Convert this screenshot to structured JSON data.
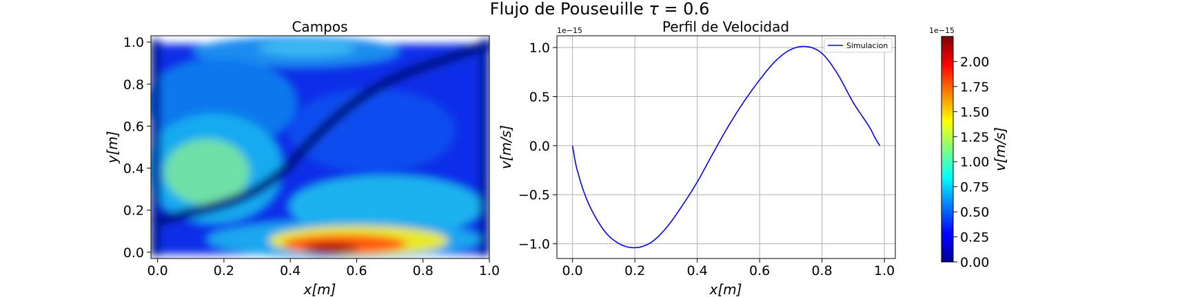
{
  "figure": {
    "title": "Flujo de Pouseuille τ = 0.6",
    "title_main": "Flujo de Pouseuille ",
    "title_tau": "τ",
    "title_rest": " = 0.6"
  },
  "chart_data": [
    {
      "type": "heatmap",
      "title": "Campos",
      "xlabel": "x[m]",
      "ylabel": "y[m]",
      "xlim": [
        -0.02,
        1.0
      ],
      "ylim": [
        -0.03,
        1.03
      ],
      "xticks": [
        "0.0",
        "0.2",
        "0.4",
        "0.6",
        "0.8",
        "1.0"
      ],
      "yticks": [
        "0.0",
        "0.2",
        "0.4",
        "0.6",
        "0.8",
        "1.0"
      ],
      "colormap": "jet",
      "value_range": [
        0,
        2.25e-15
      ],
      "grid": false,
      "description_of_field": "velocity magnitude; max ~2.2e-15 near (0.5, 0.0), secondary ~1.1e-15 near (0.25, 0.35), low band along a diagonal S-shaped streamline from (0,0.1) to (1,1)"
    },
    {
      "type": "line",
      "title": "Perfil de Velocidad",
      "xlabel": "x[m]",
      "ylabel": "v[m/s]",
      "offset_text": "1e−15",
      "xlim": [
        -0.05,
        1.035
      ],
      "ylim": [
        -1.15,
        1.12
      ],
      "xticks": [
        "0.0",
        "0.2",
        "0.4",
        "0.6",
        "0.8",
        "1.0"
      ],
      "yticks": [
        "−1.0",
        "−0.5",
        "0.0",
        "0.5",
        "1.0"
      ],
      "grid": true,
      "legend_position": "upper right",
      "series": [
        {
          "name": "Simulacion",
          "color": "#0000ff",
          "x": [
            0.0,
            0.016,
            0.05,
            0.1,
            0.15,
            0.2,
            0.25,
            0.3,
            0.35,
            0.4,
            0.45,
            0.5,
            0.55,
            0.6,
            0.65,
            0.7,
            0.75,
            0.8,
            0.85,
            0.9,
            0.95,
            0.97,
            0.985
          ],
          "y": [
            0.0,
            -0.26,
            -0.58,
            -0.86,
            -1.0,
            -1.04,
            -0.99,
            -0.84,
            -0.62,
            -0.37,
            -0.08,
            0.2,
            0.45,
            0.67,
            0.86,
            0.98,
            1.01,
            0.94,
            0.73,
            0.44,
            0.2,
            0.08,
            0.0
          ]
        }
      ]
    },
    {
      "type": "colorbar",
      "label": "v[m/s]",
      "offset_text": "1e−15",
      "colormap": "jet",
      "range": [
        0,
        2.25
      ],
      "ticks": [
        "0.00",
        "0.25",
        "0.50",
        "0.75",
        "1.00",
        "1.25",
        "1.50",
        "1.75",
        "2.00"
      ],
      "tick_values": [
        0,
        0.25,
        0.5,
        0.75,
        1.0,
        1.25,
        1.5,
        1.75,
        2.0
      ]
    }
  ]
}
